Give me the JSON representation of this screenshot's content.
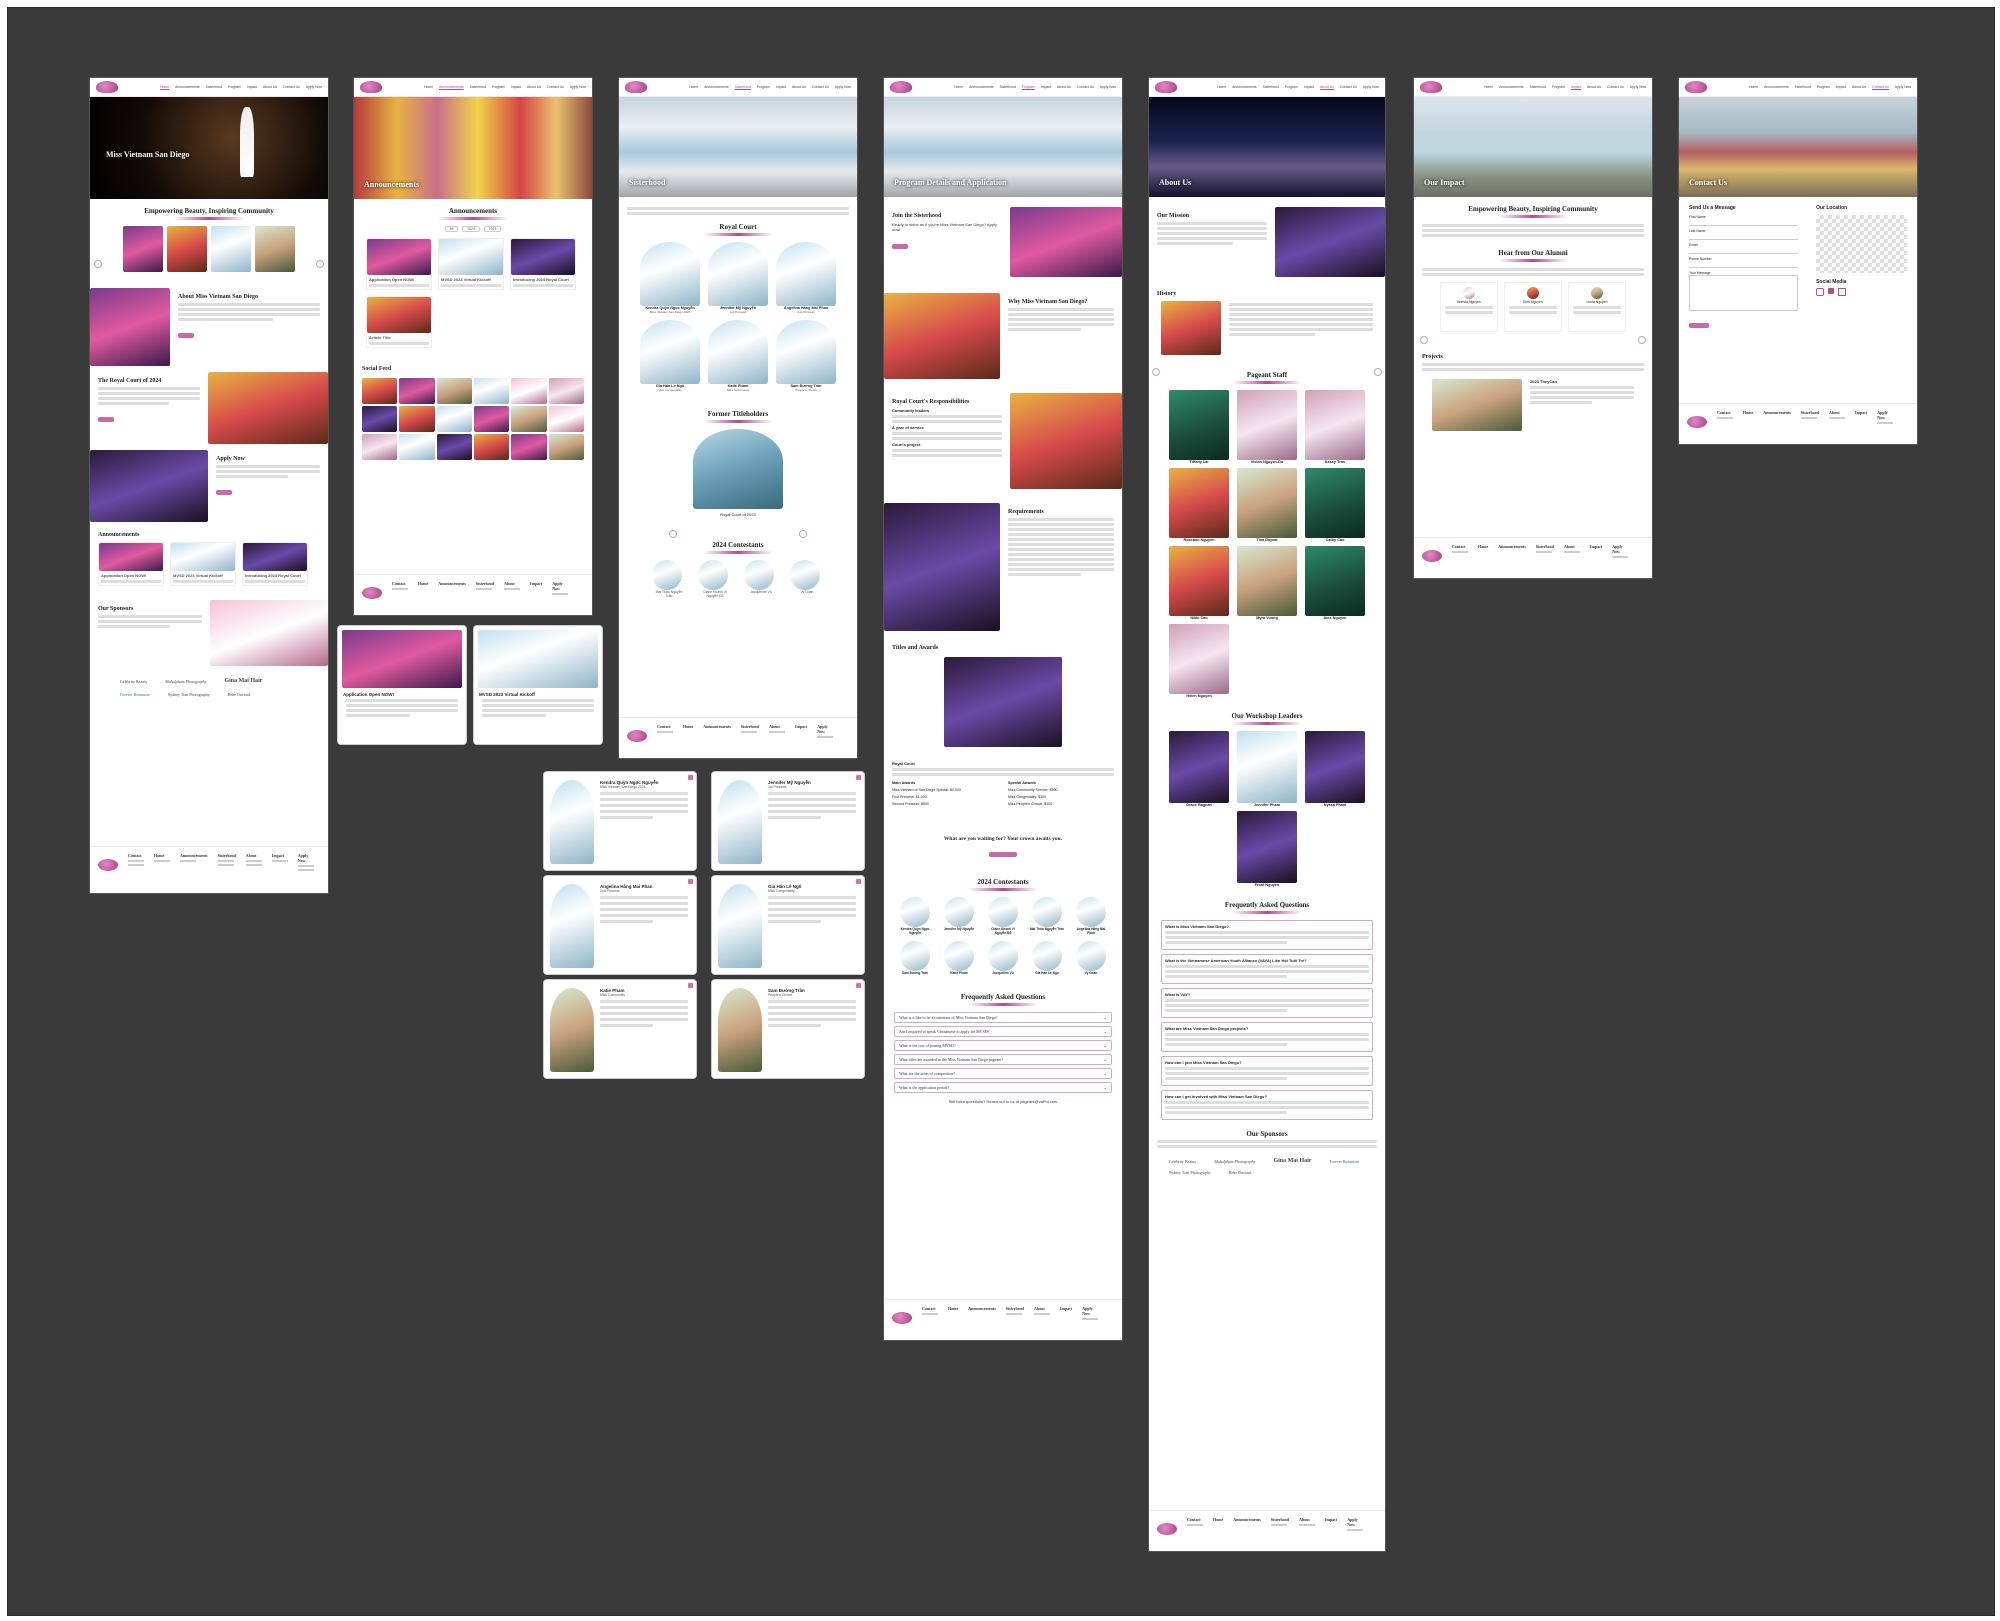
{
  "nav": {
    "links": [
      "Home",
      "Announcements",
      "Sisterhood",
      "Program",
      "Impact",
      "About Us",
      "Contact Us",
      "Apply Now"
    ]
  },
  "home": {
    "hero_title": "Miss Vietnam San Diego",
    "section1_title": "Empowering Beauty, Inspiring Community",
    "about_title": "About Miss Vietnam San Diego",
    "court_title": "The Royal Court of 2024",
    "apply_title": "Apply Now",
    "announcements_title": "Announcements",
    "cards": [
      {
        "title": "Application Open NOW!"
      },
      {
        "title": "MVSD 2023 Virtual Kickoff"
      },
      {
        "title": "Introducing 2024 Royal Court"
      }
    ],
    "sponsors_title": "Our Sponsors",
    "sponsors": [
      "Gina Mai Hair",
      "Forever Beaumore",
      "Sydney Tran Photography",
      "Bebe Ouvrard",
      "Mahalpham Photography",
      "Celebrity Beauty"
    ]
  },
  "announcements": {
    "hero_title": "Announcements",
    "section_title": "Announcements",
    "filters": [
      "All",
      "2024",
      "2023"
    ],
    "cards": [
      "Application Open NOW!",
      "MVSD 2023 Virtual Kickoff",
      "Introducing 2024 Royal Court",
      "Article Title"
    ],
    "social_title": "Social Feed",
    "popup1_title": "Application Open NOW!",
    "popup2_title": "MVSD 2023 Virtual Kickoff"
  },
  "sisterhood": {
    "hero_title": "Sisterhood",
    "court_title": "Royal Court",
    "court": [
      {
        "name": "Kendra Quỳn Ngọc Nguyễn",
        "role": "Miss Vietnam San Diego 2024"
      },
      {
        "name": "Jennifer Mỹ Nguyễn",
        "role": "1st Princess"
      },
      {
        "name": "Angelina Hằng Mai Phan",
        "role": "2nd Princess"
      },
      {
        "name": "Gia Hân Lê Ngô",
        "role": "Miss Congeniality"
      },
      {
        "name": "Katie Pham",
        "role": "Miss Community"
      },
      {
        "name": "Sam Đường Trần",
        "role": "People's Choice"
      }
    ],
    "former_title": "Former Titleholders",
    "former_caption": "Royal Court of 2023",
    "contestants_title": "2024 Contestants",
    "contestants": [
      "Mai Thảo Nguyễn Trần",
      "Claire Khánh Vi Nguyễn Đỗ",
      "Jacqueline Vũ",
      "Vy Đoàn"
    ]
  },
  "modals": [
    {
      "name": "Kendra Quỳn Ngọc Nguyễn",
      "role": "Miss Vietnam San Diego 2024"
    },
    {
      "name": "Jennifer Mỹ Nguyễn",
      "role": "1st Princess"
    },
    {
      "name": "Angelina Hằng Mai Phan",
      "role": "2nd Princess"
    },
    {
      "name": "Gia Hân Lê Ngô",
      "role": "Miss Congeniality"
    },
    {
      "name": "Katie Pham",
      "role": "Miss Community"
    },
    {
      "name": "Sam Đường Trần",
      "role": "People's Choice"
    }
  ],
  "program": {
    "hero_title": "Program Details and Application",
    "join_title": "Join the Sisterhood",
    "join_text": "Ready to shine as if you're Miss Vietnam San Diego? Apply now!",
    "why_title": "Why Miss Vietnam San Diego?",
    "resp_title": "Royal Court's Responsibilities",
    "resp_items": [
      "Community leaders",
      "A year of service",
      "Court's project"
    ],
    "req_title": "Requirements",
    "titles_title": "Titles and Awards",
    "awards": [
      "Royal Court",
      "Main Awards",
      "Special Awards",
      "Miss Vietnam of San Diego Special: $2,000",
      "Miss Community Service: $100",
      "First Princess: $1,000",
      "Miss Congeniality: $100",
      "Second Princess: $500",
      "Miss People's Choice: $100"
    ],
    "cta_title": "What are you waiting for? Your crown awaits you.",
    "contestants_title": "2024 Contestants",
    "contestants": [
      "Kendra Quỳn Ngọc Nguyễn",
      "Jennifer Mỹ Nguyễn",
      "Claire Khánh Vi Nguyễn Đỗ",
      "Mai Thảo Nguyễn Trần",
      "Angelina Hằng Mai Phan",
      "Sam Đường Trần",
      "Katie Pham",
      "Jacqueline Vũ",
      "Gia Hân Lê Ngô",
      "Vy Đoàn"
    ],
    "faq_title": "Frequently Asked Questions",
    "faqs": [
      "What is it like to be a contestant of Miss Vietnam San Diego?",
      "Am I required to speak Vietnamese to apply for MVSD?",
      "What is the cost of joining MVSD?",
      "What titles are awarded in the Miss Vietnam San Diego pageant?",
      "What are the areas of competition?",
      "What is the application period?"
    ],
    "still_q": "Still have questions? Reach out to us at pageant@vaPol.com"
  },
  "about": {
    "hero_title": "About Us",
    "mission_title": "Our Mission",
    "history_title": "History",
    "staff_title": "Pageant Staff",
    "staff": [
      "Tiffany Lai",
      "Vivian Nguyen-Do",
      "Kasey Tran",
      "Roseann Nguyen",
      "Tina Duprat",
      "Cathy Cao",
      "Nikki Cao",
      "Myra Vuong",
      "Alex Nguyen",
      "Helen Nguyen"
    ],
    "leaders_title": "Our Workshop Leaders",
    "leaders": [
      "Grace Ragnan",
      "Jennifer Pham",
      "Nyssa Pham",
      "Front Nguyen"
    ],
    "faq_title": "Frequently Asked Questions",
    "faqs": [
      "What is Miss Vietnam San Diego?",
      "What is the Vietnamese American Youth Alliance (VAYA) Liên Hội Tuổi Trẻ?",
      "What is VAY?",
      "What are Miss Vietnam San Diego projects?",
      "How can I join Miss Vietnam San Diego?",
      "How can I get involved with Miss Vietnam San Diego?"
    ],
    "sponsors_title": "Our Sponsors"
  },
  "impact": {
    "hero_title": "Our Impact",
    "section1_title": "Empowering Beauty, Inspiring Community",
    "alumni_title": "Hear from Our Alumni",
    "alumni": [
      "Brenda Nguyen",
      "Elen Nguyen",
      "Linda Nguyen"
    ],
    "projects_title": "Projects",
    "project_name": "2023 TheyCan"
  },
  "contact": {
    "hero_title": "Contact Us",
    "form_title": "Send Us a Message",
    "fields": [
      "First Name",
      "Last Name",
      "Email",
      "Phone Number",
      "Your Message"
    ],
    "location_title": "Our Location",
    "social_title": "Social Media"
  },
  "footer": {
    "cols": [
      "Contact",
      "Home",
      "Announcements",
      "Sisterhood",
      "About",
      "Impact",
      "Apply Now"
    ]
  },
  "colors": {
    "accent": "#b44a92",
    "canvas": "#3a3a3a",
    "soft": "#f6e8f1"
  }
}
